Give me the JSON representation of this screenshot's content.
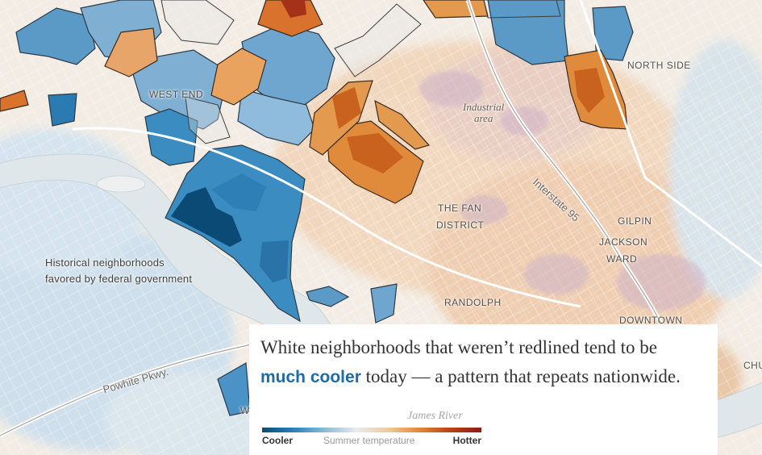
{
  "map": {
    "place_labels": {
      "west_end": "WEST END",
      "north_side": "NORTH SIDE",
      "the_fan_line1": "THE FAN",
      "the_fan_line2": "DISTRICT",
      "gilpin": "GILPIN",
      "jackson_line1": "JACKSON",
      "jackson_line2": "WARD",
      "randolph": "RANDOLPH",
      "downtown": "DOWNTOWN",
      "chu_partial": "CHU",
      "we_partial": "WE"
    },
    "industrial_line1": "Industrial",
    "industrial_line2": "area",
    "roads": {
      "interstate": "Interstate 95",
      "powhite": "Powhite Pkwy.",
      "james_river": "James River"
    },
    "annotation_line1": "Historical neighborhoods",
    "annotation_line2": "favored by federal government"
  },
  "caption": {
    "text_before": "White neighborhoods that weren’t redlined tend to be ",
    "highlight": "much cooler",
    "text_after": " today — a pattern that repeats nationwide."
  },
  "legend": {
    "left_label": "Cooler",
    "center_label": "Summer temperature",
    "right_label": "Hotter"
  },
  "colors": {
    "cool_dark": "#0b4a74",
    "cool": "#3a8cc1",
    "hot": "#e08a3c",
    "hot_dark": "#8c1c17",
    "river": "#dfe7ea",
    "highlight_text": "#1e6ca3"
  }
}
